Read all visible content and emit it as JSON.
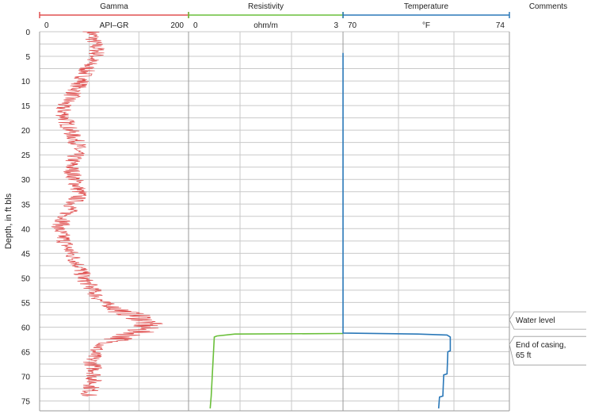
{
  "chart_data": {
    "type": "line",
    "y_axis": {
      "label": "Depth, in ft bls",
      "range": [
        0,
        77
      ],
      "ticks": [
        0,
        5,
        10,
        15,
        20,
        25,
        30,
        35,
        40,
        45,
        50,
        55,
        60,
        65,
        70,
        75
      ],
      "inverted": true
    },
    "grid": true,
    "tracks": [
      {
        "name": "Gamma",
        "unit": "API–GR",
        "range": [
          0,
          200
        ],
        "tick_labels": [
          "0",
          "200"
        ],
        "color": "#e05050",
        "profile": [
          [
            0,
            70
          ],
          [
            2,
            73
          ],
          [
            4,
            78
          ],
          [
            5,
            75
          ],
          [
            6,
            68
          ],
          [
            8,
            62
          ],
          [
            10,
            57
          ],
          [
            12,
            48
          ],
          [
            14,
            38
          ],
          [
            15,
            30
          ],
          [
            17,
            33
          ],
          [
            19,
            38
          ],
          [
            21,
            44
          ],
          [
            23,
            52
          ],
          [
            25,
            48
          ],
          [
            27,
            42
          ],
          [
            29,
            45
          ],
          [
            31,
            50
          ],
          [
            33,
            54
          ],
          [
            35,
            45
          ],
          [
            37,
            37
          ],
          [
            39,
            30
          ],
          [
            40,
            25
          ],
          [
            42,
            32
          ],
          [
            44,
            38
          ],
          [
            46,
            46
          ],
          [
            48,
            55
          ],
          [
            50,
            58
          ],
          [
            52,
            70
          ],
          [
            54,
            78
          ],
          [
            55,
            85
          ],
          [
            56,
            100
          ],
          [
            57,
            115
          ],
          [
            58,
            135
          ],
          [
            59,
            145
          ],
          [
            60,
            140
          ],
          [
            61,
            132
          ],
          [
            62,
            115
          ],
          [
            63,
            95
          ],
          [
            64,
            80
          ],
          [
            65,
            73
          ],
          [
            67,
            70
          ],
          [
            69,
            75
          ],
          [
            71,
            72
          ],
          [
            73,
            68
          ],
          [
            74,
            65
          ]
        ]
      },
      {
        "name": "Resistivity",
        "unit": "ohm/m",
        "range": [
          0,
          3
        ],
        "tick_labels": [
          "0",
          "3"
        ],
        "color": "#6abf3a",
        "profile": [
          [
            61.3,
            3.0
          ],
          [
            61.4,
            0.9
          ],
          [
            61.8,
            0.55
          ],
          [
            62,
            0.5
          ],
          [
            66,
            0.48
          ],
          [
            70,
            0.46
          ],
          [
            74,
            0.44
          ],
          [
            76.5,
            0.42
          ]
        ]
      },
      {
        "name": "Temperature",
        "unit": "°F",
        "range": [
          70,
          74
        ],
        "tick_labels": [
          "70",
          "74"
        ],
        "color": "#2a78b8",
        "profile": [
          [
            4.3,
            70.0
          ],
          [
            61.2,
            70.0
          ],
          [
            61.4,
            71.8
          ],
          [
            61.6,
            72.5
          ],
          [
            62,
            72.58
          ],
          [
            64.8,
            72.58
          ],
          [
            65,
            72.52
          ],
          [
            69.5,
            72.5
          ],
          [
            69.7,
            72.42
          ],
          [
            74,
            72.4
          ],
          [
            74.2,
            72.32
          ],
          [
            76.5,
            72.3
          ]
        ]
      }
    ],
    "comments_header": "Comments",
    "annotations": [
      {
        "depth": 58.5,
        "text": "Water level"
      },
      {
        "depth": 63.5,
        "text": "End of casing,\n65 ft"
      }
    ]
  }
}
